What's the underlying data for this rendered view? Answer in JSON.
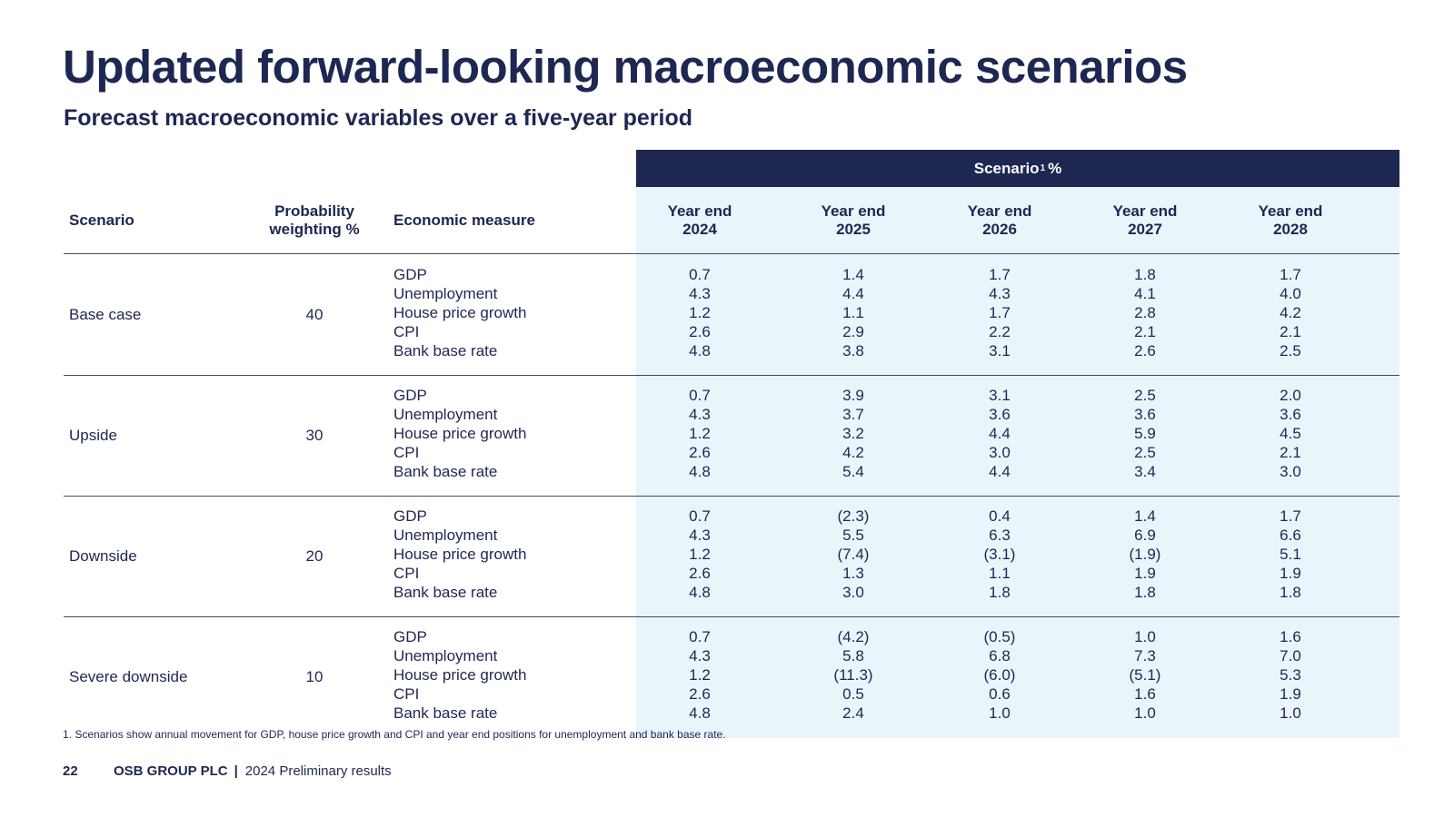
{
  "title": "Updated forward-looking macroeconomic scenarios",
  "subtitle": "Forecast macroeconomic variables over a five-year period",
  "table": {
    "banner": {
      "label": "Scenario",
      "superscript": "1",
      "unit": "%"
    },
    "headers": {
      "scenario": "Scenario",
      "probability_line1": "Probability",
      "probability_line2": "weighting %",
      "measure": "Economic measure",
      "years": [
        {
          "line1": "Year end",
          "line2": "2024"
        },
        {
          "line1": "Year end",
          "line2": "2025"
        },
        {
          "line1": "Year end",
          "line2": "2026"
        },
        {
          "line1": "Year end",
          "line2": "2027"
        },
        {
          "line1": "Year end",
          "line2": "2028"
        }
      ]
    },
    "measures": [
      "GDP",
      "Unemployment",
      "House price growth",
      "CPI",
      "Bank base rate"
    ],
    "groups": [
      {
        "scenario": "Base case",
        "weighting": "40",
        "values": [
          [
            "0.7",
            "4.3",
            "1.2",
            "2.6",
            "4.8"
          ],
          [
            "1.4",
            "4.4",
            "1.1",
            "2.9",
            "3.8"
          ],
          [
            "1.7",
            "4.3",
            "1.7",
            "2.2",
            "3.1"
          ],
          [
            "1.8",
            "4.1",
            "2.8",
            "2.1",
            "2.6"
          ],
          [
            "1.7",
            "4.0",
            "4.2",
            "2.1",
            "2.5"
          ]
        ]
      },
      {
        "scenario": "Upside",
        "weighting": "30",
        "values": [
          [
            "0.7",
            "4.3",
            "1.2",
            "2.6",
            "4.8"
          ],
          [
            "3.9",
            "3.7",
            "3.2",
            "4.2",
            "5.4"
          ],
          [
            "3.1",
            "3.6",
            "4.4",
            "3.0",
            "4.4"
          ],
          [
            "2.5",
            "3.6",
            "5.9",
            "2.5",
            "3.4"
          ],
          [
            "2.0",
            "3.6",
            "4.5",
            "2.1",
            "3.0"
          ]
        ]
      },
      {
        "scenario": "Downside",
        "weighting": "20",
        "values": [
          [
            "0.7",
            "4.3",
            "1.2",
            "2.6",
            "4.8"
          ],
          [
            "(2.3)",
            "5.5",
            "(7.4)",
            "1.3",
            "3.0"
          ],
          [
            "0.4",
            "6.3",
            "(3.1)",
            "1.1",
            "1.8"
          ],
          [
            "1.4",
            "6.9",
            "(1.9)",
            "1.9",
            "1.8"
          ],
          [
            "1.7",
            "6.6",
            "5.1",
            "1.9",
            "1.8"
          ]
        ]
      },
      {
        "scenario": "Severe downside",
        "weighting": "10",
        "values": [
          [
            "0.7",
            "4.3",
            "1.2",
            "2.6",
            "4.8"
          ],
          [
            "(4.2)",
            "5.8",
            "(11.3)",
            "0.5",
            "2.4"
          ],
          [
            "(0.5)",
            "6.8",
            "(6.0)",
            "0.6",
            "1.0"
          ],
          [
            "1.0",
            "7.3",
            "(5.1)",
            "1.6",
            "1.0"
          ],
          [
            "1.6",
            "7.0",
            "5.3",
            "1.9",
            "1.0"
          ]
        ]
      }
    ]
  },
  "footnote": "1. Scenarios show annual movement for GDP, house price growth and CPI and year end positions for unemployment and bank base rate.",
  "footer": {
    "page_number": "22",
    "company": "OSB GROUP PLC",
    "separator": "|",
    "document": "2024 Preliminary results"
  },
  "colors": {
    "navy": "#1e2752",
    "light_blue_shade": "#e9f4fb",
    "rule": "#444a5c"
  }
}
